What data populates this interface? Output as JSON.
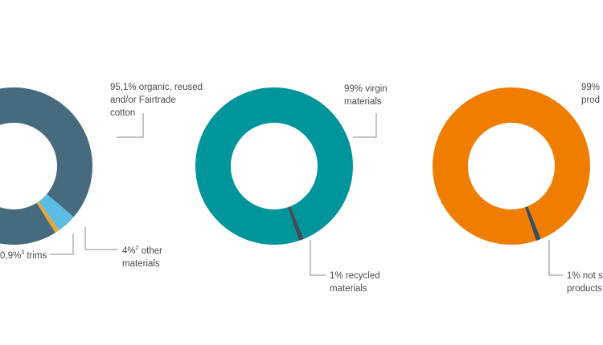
{
  "chart_data": [
    {
      "type": "pie",
      "slices": [
        {
          "label": "95,1% organic, reused and/or Fairtrade cotton",
          "value": 95.1,
          "color": "#466b7e"
        },
        {
          "label": "4%² other materials",
          "value": 4.0,
          "color": "#5bbde4"
        },
        {
          "label": "0,9%³ trims",
          "value": 0.9,
          "color": "#e9a836"
        }
      ],
      "annotations": {
        "cotton_line1": "95,1% organic, reused",
        "cotton_line2": "and/or Fairtrade",
        "cotton_line3": "cotton",
        "other_pct": "4%",
        "other_sup": "2",
        "other_line1_rest": " other",
        "other_line2": "materials",
        "trims_pct": "0,9%",
        "trims_sup": "3",
        "trims_rest": " trims"
      }
    },
    {
      "type": "pie",
      "slices": [
        {
          "label": "99% virgin materials",
          "value": 99,
          "color": "#00959a"
        },
        {
          "label": "1% recycled materials",
          "value": 1,
          "color": "#3c4b57"
        }
      ],
      "annotations": {
        "virgin_line1": "99% virgin",
        "virgin_line2": "materials",
        "recycled_line1": "1% recycled",
        "recycled_line2": "materials"
      }
    },
    {
      "type": "pie",
      "slices": [
        {
          "label": "99% prod…",
          "value": 99,
          "color": "#ef7d00"
        },
        {
          "label": "1% not s… products",
          "value": 1,
          "color": "#3c4b57"
        }
      ],
      "annotations": {
        "main_line1": "99%",
        "main_line2": "prod",
        "minor_line1": "1% not s",
        "minor_line2": "products"
      }
    }
  ]
}
